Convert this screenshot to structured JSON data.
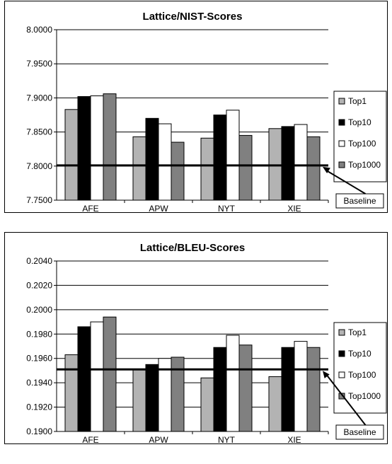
{
  "chart_data": [
    {
      "type": "bar",
      "title": "Lattice/NIST-Scores",
      "categories": [
        "AFE",
        "APW",
        "NYT",
        "XIE"
      ],
      "series": [
        {
          "name": "Top1",
          "values": [
            7.883,
            7.843,
            7.841,
            7.855
          ],
          "color": "#b3b3b3"
        },
        {
          "name": "Top10",
          "values": [
            7.902,
            7.87,
            7.875,
            7.858
          ],
          "color": "#000000"
        },
        {
          "name": "Top100",
          "values": [
            7.903,
            7.862,
            7.882,
            7.861
          ],
          "color": "#ffffff"
        },
        {
          "name": "Top1000",
          "values": [
            7.906,
            7.835,
            7.845,
            7.843
          ],
          "color": "#808080"
        }
      ],
      "yticks": [
        "8.0000",
        "7.9500",
        "7.9000",
        "7.8500",
        "7.8000",
        "7.7500"
      ],
      "ylim": [
        7.75,
        8.0
      ],
      "baseline": {
        "label": "Baseline",
        "value": 7.801
      },
      "grid": true,
      "legend": "right"
    },
    {
      "type": "bar",
      "title": "Lattice/BLEU-Scores",
      "categories": [
        "AFE",
        "APW",
        "NYT",
        "XIE"
      ],
      "series": [
        {
          "name": "Top1",
          "values": [
            0.1963,
            0.1951,
            0.1944,
            0.1945
          ],
          "color": "#b3b3b3"
        },
        {
          "name": "Top10",
          "values": [
            0.1986,
            0.1955,
            0.1969,
            0.1969
          ],
          "color": "#000000"
        },
        {
          "name": "Top100",
          "values": [
            0.199,
            0.196,
            0.1979,
            0.1974
          ],
          "color": "#ffffff"
        },
        {
          "name": "Top1000",
          "values": [
            0.1994,
            0.1961,
            0.1971,
            0.1969
          ],
          "color": "#808080"
        }
      ],
      "yticks": [
        "0.2040",
        "0.2020",
        "0.2000",
        "0.1980",
        "0.1960",
        "0.1940",
        "0.1920",
        "0.1900"
      ],
      "ylim": [
        0.19,
        0.204
      ],
      "baseline": {
        "label": "Baseline",
        "value": 0.1951
      },
      "grid": true,
      "legend": "right"
    }
  ]
}
